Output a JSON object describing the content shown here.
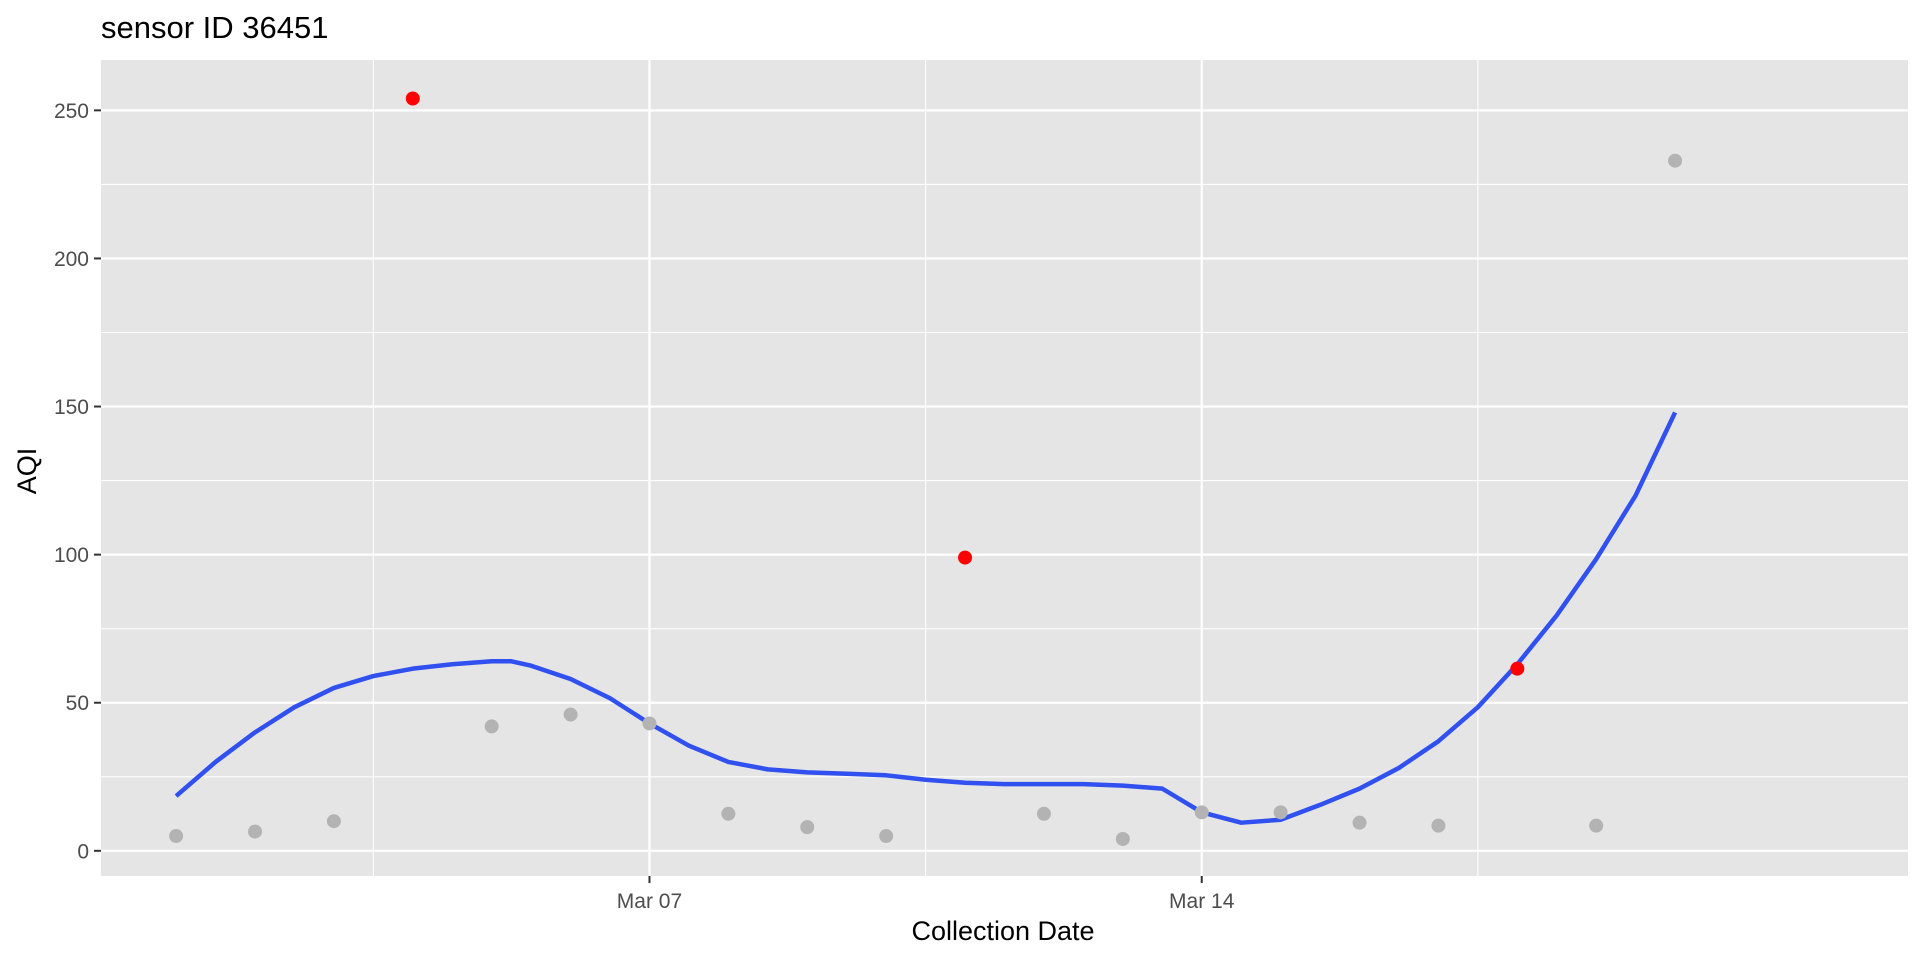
{
  "chart_data": {
    "type": "scatter",
    "title": "sensor ID 36451",
    "xlabel": "Collection Date",
    "ylabel": "AQI",
    "x_range": [
      "2025-02-28T01:09:00",
      "2025-03-22T22:51:00"
    ],
    "ylim": [
      -8.5,
      267
    ],
    "x_ticks": [
      {
        "date": "2025-03-07",
        "label": "Mar 07"
      },
      {
        "date": "2025-03-14",
        "label": "Mar 14"
      }
    ],
    "x_minor_breaks": [
      "2025-03-03T12:00:00",
      "2025-03-10T12:00:00",
      "2025-03-17T12:00:00"
    ],
    "y_ticks": [
      0,
      50,
      100,
      150,
      200,
      250
    ],
    "grid": true,
    "legend": "none",
    "colors": {
      "panel": "#e5e5e5",
      "grid": "#ffffff",
      "normal_point": "#b3b3b3",
      "outlier_point": "#ff0000",
      "trend_line": "#3050f0",
      "tick_label": "#4d4d4d"
    },
    "series": [
      {
        "values": [
          {
            "date": "2025-03-01",
            "aqi": 5
          },
          {
            "date": "2025-03-02",
            "aqi": 6.5
          },
          {
            "date": "2025-03-03",
            "aqi": 10
          },
          {
            "date": "2025-03-05",
            "aqi": 42
          },
          {
            "date": "2025-03-06",
            "aqi": 46
          },
          {
            "date": "2025-03-07",
            "aqi": 43
          },
          {
            "date": "2025-03-08",
            "aqi": 12.5
          },
          {
            "date": "2025-03-09",
            "aqi": 8
          },
          {
            "date": "2025-03-10",
            "aqi": 5
          },
          {
            "date": "2025-03-12",
            "aqi": 12.5
          },
          {
            "date": "2025-03-13",
            "aqi": 4
          },
          {
            "date": "2025-03-14",
            "aqi": 13
          },
          {
            "date": "2025-03-15",
            "aqi": 13
          },
          {
            "date": "2025-03-16",
            "aqi": 9.5
          },
          {
            "date": "2025-03-17",
            "aqi": 8.5
          },
          {
            "date": "2025-03-19",
            "aqi": 8.5
          },
          {
            "date": "2025-03-20",
            "aqi": 233
          }
        ]
      },
      {
        "values": [
          {
            "date": "2025-03-04",
            "aqi": 254
          },
          {
            "date": "2025-03-11",
            "aqi": 99
          },
          {
            "date": "2025-03-18",
            "aqi": 61.5
          }
        ]
      }
    ],
    "trend": [
      {
        "date": "2025-03-01T00:00:00",
        "aqi": 18.5
      },
      {
        "date": "2025-03-01T12:00:00",
        "aqi": 30
      },
      {
        "date": "2025-03-02T00:00:00",
        "aqi": 40
      },
      {
        "date": "2025-03-02T12:00:00",
        "aqi": 48.5
      },
      {
        "date": "2025-03-03T00:00:00",
        "aqi": 55
      },
      {
        "date": "2025-03-03T12:00:00",
        "aqi": 59
      },
      {
        "date": "2025-03-04T00:00:00",
        "aqi": 61.5
      },
      {
        "date": "2025-03-04T12:00:00",
        "aqi": 63
      },
      {
        "date": "2025-03-05T00:00:00",
        "aqi": 64
      },
      {
        "date": "2025-03-05T06:00:00",
        "aqi": 64
      },
      {
        "date": "2025-03-05T12:00:00",
        "aqi": 62.5
      },
      {
        "date": "2025-03-06T00:00:00",
        "aqi": 58
      },
      {
        "date": "2025-03-06T12:00:00",
        "aqi": 51.5
      },
      {
        "date": "2025-03-07T00:00:00",
        "aqi": 43
      },
      {
        "date": "2025-03-07T12:00:00",
        "aqi": 35.5
      },
      {
        "date": "2025-03-08T00:00:00",
        "aqi": 30
      },
      {
        "date": "2025-03-08T12:00:00",
        "aqi": 27.5
      },
      {
        "date": "2025-03-09T00:00:00",
        "aqi": 26.5
      },
      {
        "date": "2025-03-09T12:00:00",
        "aqi": 26
      },
      {
        "date": "2025-03-10T00:00:00",
        "aqi": 25.5
      },
      {
        "date": "2025-03-10T12:00:00",
        "aqi": 24
      },
      {
        "date": "2025-03-11T00:00:00",
        "aqi": 23
      },
      {
        "date": "2025-03-11T12:00:00",
        "aqi": 22.5
      },
      {
        "date": "2025-03-12T00:00:00",
        "aqi": 22.5
      },
      {
        "date": "2025-03-12T12:00:00",
        "aqi": 22.5
      },
      {
        "date": "2025-03-13T00:00:00",
        "aqi": 22
      },
      {
        "date": "2025-03-13T12:00:00",
        "aqi": 21
      },
      {
        "date": "2025-03-14T00:00:00",
        "aqi": 13
      },
      {
        "date": "2025-03-14T12:00:00",
        "aqi": 9.5
      },
      {
        "date": "2025-03-15T00:00:00",
        "aqi": 10.5
      },
      {
        "date": "2025-03-15T12:00:00",
        "aqi": 15.5
      },
      {
        "date": "2025-03-16T00:00:00",
        "aqi": 21
      },
      {
        "date": "2025-03-16T12:00:00",
        "aqi": 28
      },
      {
        "date": "2025-03-17T00:00:00",
        "aqi": 37
      },
      {
        "date": "2025-03-17T12:00:00",
        "aqi": 48.5
      },
      {
        "date": "2025-03-18T00:00:00",
        "aqi": 63
      },
      {
        "date": "2025-03-18T12:00:00",
        "aqi": 79.5
      },
      {
        "date": "2025-03-19T00:00:00",
        "aqi": 98.5
      },
      {
        "date": "2025-03-19T12:00:00",
        "aqi": 120
      },
      {
        "date": "2025-03-20T00:00:00",
        "aqi": 148
      }
    ]
  }
}
